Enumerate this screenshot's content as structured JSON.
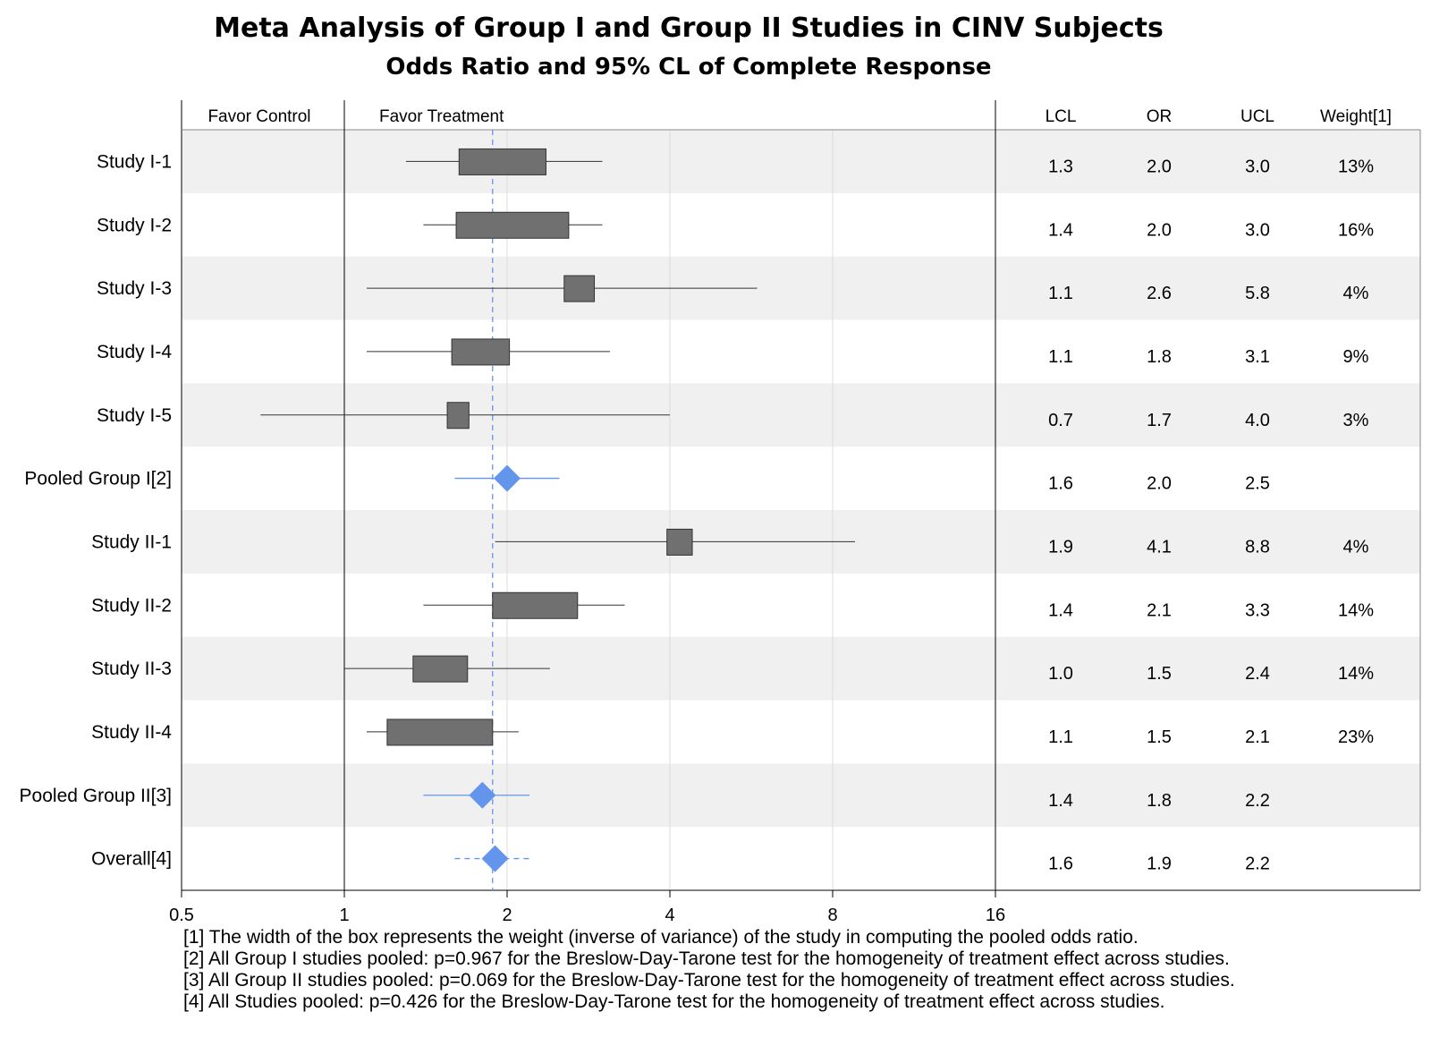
{
  "title": "Meta Analysis of Group I and Group II Studies in CINV Subjects",
  "subtitle": "Odds Ratio and 95% CL of Complete Response",
  "header": {
    "favor_control": "Favor Control",
    "favor_treatment": "Favor Treatment",
    "lcl": "LCL",
    "or": "OR",
    "ucl": "UCL",
    "weight": "Weight[1]"
  },
  "footnotes": [
    "[1] The width of the box represents the weight (inverse of variance) of the study in computing the pooled odds ratio.",
    "[2] All Group I studies pooled: p=0.967 for the Breslow-Day-Tarone test for the homogeneity of treatment effect across studies.",
    "[3] All Group II studies pooled: p=0.069 for the Breslow-Day-Tarone test for the homogeneity of treatment effect across studies.",
    "[4] All Studies pooled: p=0.426 for the Breslow-Day-Tarone test for the homogeneity of treatment effect across studies."
  ],
  "colors": {
    "box": "#707070",
    "diamond": "#6495ed",
    "band": "#f0f0f0",
    "reference": "#6495ed"
  },
  "chart_data": {
    "type": "forest",
    "x_scale": "log2",
    "xlim": [
      0.5,
      16
    ],
    "x_ticks": [
      "0.5",
      "1",
      "2",
      "4",
      "8",
      "16"
    ],
    "x_tick_values": [
      0.5,
      1,
      2,
      4,
      8,
      16
    ],
    "reference_line": 1.88,
    "null_line": 1,
    "alternating_bands": true,
    "rows": [
      {
        "label": "Study I-1",
        "kind": "study",
        "or": 2.0,
        "lcl": 1.3,
        "ucl": 3.0,
        "or_text": "2.0",
        "lcl_text": "1.3",
        "ucl_text": "3.0",
        "weight": "13%",
        "box_low": 1.63,
        "box_high": 2.36
      },
      {
        "label": "Study I-2",
        "kind": "study",
        "or": 2.0,
        "lcl": 1.4,
        "ucl": 3.0,
        "or_text": "2.0",
        "lcl_text": "1.4",
        "ucl_text": "3.0",
        "weight": "16%",
        "box_low": 1.61,
        "box_high": 2.6
      },
      {
        "label": "Study I-3",
        "kind": "study",
        "or": 2.6,
        "lcl": 1.1,
        "ucl": 5.8,
        "or_text": "2.6",
        "lcl_text": "1.1",
        "ucl_text": "5.8",
        "weight": "4%",
        "box_low": 2.55,
        "box_high": 2.9
      },
      {
        "label": "Study I-4",
        "kind": "study",
        "or": 1.8,
        "lcl": 1.1,
        "ucl": 3.1,
        "or_text": "1.8",
        "lcl_text": "1.1",
        "ucl_text": "3.1",
        "weight": "9%",
        "box_low": 1.58,
        "box_high": 2.02
      },
      {
        "label": "Study I-5",
        "kind": "study",
        "or": 1.7,
        "lcl": 0.7,
        "ucl": 4.0,
        "or_text": "1.7",
        "lcl_text": "0.7",
        "ucl_text": "4.0",
        "weight": "3%",
        "box_low": 1.55,
        "box_high": 1.7
      },
      {
        "label": "Pooled Group I[2]",
        "kind": "pooled",
        "or": 2.0,
        "lcl": 1.6,
        "ucl": 2.5,
        "or_text": "2.0",
        "lcl_text": "1.6",
        "ucl_text": "2.5",
        "weight": ""
      },
      {
        "label": "Study II-1",
        "kind": "study",
        "or": 4.1,
        "lcl": 1.9,
        "ucl": 8.8,
        "or_text": "4.1",
        "lcl_text": "1.9",
        "ucl_text": "8.8",
        "weight": "4%",
        "box_low": 3.95,
        "box_high": 4.4
      },
      {
        "label": "Study II-2",
        "kind": "study",
        "or": 2.1,
        "lcl": 1.4,
        "ucl": 3.3,
        "or_text": "2.1",
        "lcl_text": "1.4",
        "ucl_text": "3.3",
        "weight": "14%",
        "box_low": 1.88,
        "box_high": 2.7
      },
      {
        "label": "Study II-3",
        "kind": "study",
        "or": 1.5,
        "lcl": 1.0,
        "ucl": 2.4,
        "or_text": "1.5",
        "lcl_text": "1.0",
        "ucl_text": "2.4",
        "weight": "14%",
        "box_low": 1.34,
        "box_high": 1.69
      },
      {
        "label": "Study II-4",
        "kind": "study",
        "or": 1.5,
        "lcl": 1.1,
        "ucl": 2.1,
        "or_text": "1.5",
        "lcl_text": "1.1",
        "ucl_text": "2.1",
        "weight": "23%",
        "box_low": 1.2,
        "box_high": 1.88
      },
      {
        "label": "Pooled Group II[3]",
        "kind": "pooled",
        "or": 1.8,
        "lcl": 1.4,
        "ucl": 2.2,
        "or_text": "1.8",
        "lcl_text": "1.4",
        "ucl_text": "2.2",
        "weight": ""
      },
      {
        "label": "Overall[4]",
        "kind": "overall",
        "or": 1.9,
        "lcl": 1.6,
        "ucl": 2.2,
        "or_text": "1.9",
        "lcl_text": "1.6",
        "ucl_text": "2.2",
        "weight": ""
      }
    ]
  }
}
